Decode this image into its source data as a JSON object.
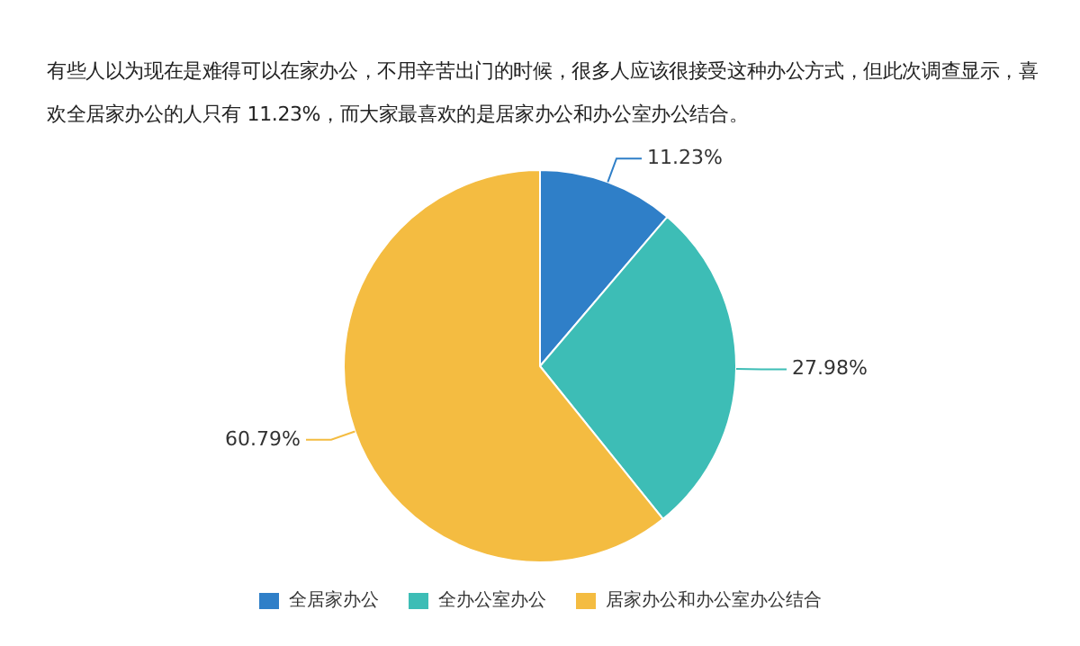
{
  "chart_data": {
    "type": "pie",
    "title": "有些人以为现在是难得可以在家办公，不用辛苦出门的时候，很多人应该很接受这种办公方式，但此次调查显示，喜欢全居家办公的人只有 11.23%，而大家最喜欢的是居家办公和办公室办公结合。",
    "categories": [
      "全居家办公",
      "全办公室办公",
      "居家办公和办公室办公结合"
    ],
    "values": [
      11.23,
      27.98,
      60.79
    ],
    "value_labels": [
      "11.23%",
      "27.98%",
      "60.79%"
    ],
    "colors": [
      "#2f7fc8",
      "#3dbdb6",
      "#f4bc41"
    ],
    "legend": "bottom"
  }
}
